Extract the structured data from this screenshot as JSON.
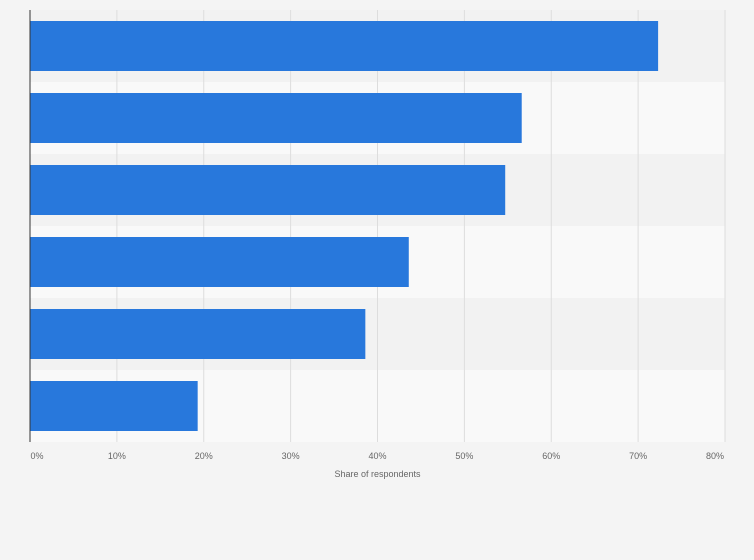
{
  "chart_data": {
    "type": "bar",
    "orientation": "horizontal",
    "title": "",
    "xlabel": "Share of respondents",
    "ylabel": "",
    "categories": [
      "",
      "",
      "",
      "",
      "",
      ""
    ],
    "values": [
      72.3,
      56.6,
      54.7,
      43.6,
      38.6,
      19.3
    ],
    "unit": "%",
    "xlim": [
      0,
      80
    ],
    "xticks": [
      "0%",
      "10%",
      "20%",
      "30%",
      "40%",
      "50%",
      "60%",
      "70%",
      "80%"
    ],
    "grid": true,
    "legend": "none",
    "colors": {
      "bar": "#2878dc",
      "band_dark": "#f2f2f2",
      "band_light": "#f9f9f9",
      "grid": "#dddddd",
      "axis": "#333333",
      "background": "#f4f4f4"
    }
  }
}
